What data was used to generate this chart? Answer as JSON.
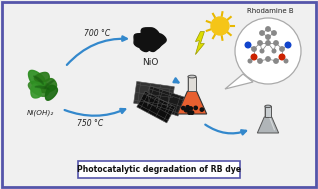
{
  "title": "Photocatalytic degradation of RB dye",
  "bg_color": "#f0f0f0",
  "border_color": "#5555aa",
  "arrow_color": "#3388cc",
  "text_700": "700 °C",
  "text_750": "750 °C",
  "label_NiO": "NiO",
  "label_NiOH2": "Ni(OH)₂",
  "label_RhB": "Rhodamine B",
  "sun_color": "#f5c518",
  "flask_orange_color": "#e86030",
  "flask_gray_color": "#909090",
  "nanoparticle_color": "#111111",
  "leaf_colors": [
    "#2d7a2d",
    "#3a9a3a",
    "#1a5a1a"
  ],
  "molecule_colors": {
    "gray": "#888888",
    "red": "#cc2200",
    "blue": "#1144cc",
    "dark": "#333333"
  },
  "nanosheet_color": "#1a1a1a",
  "nanoparticle_cluster_color": "#111111"
}
